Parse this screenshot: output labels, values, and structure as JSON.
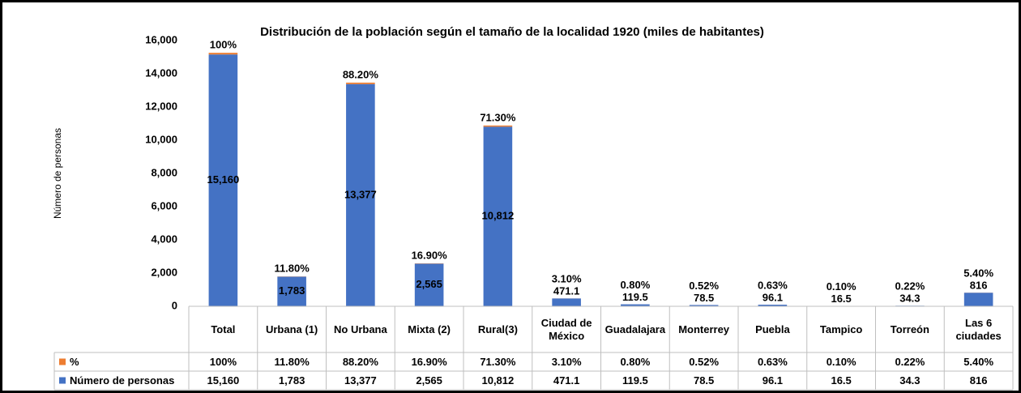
{
  "chart_data": {
    "type": "bar",
    "stacked": true,
    "title": "Distribución de la población según el tamaño de la localidad 1920 (miles de habitantes)",
    "ylabel": "Número de personas",
    "categories": [
      "Total",
      "Urbana (1)",
      "No Urbana",
      "Mixta (2)",
      "Rural(3)",
      "Ciudad de México",
      "Guadalajara",
      "Monterrey",
      "Puebla",
      "Tampico",
      "Torreón",
      "Las 6 ciudades"
    ],
    "series": [
      {
        "name": "%",
        "color": "#ed7d31",
        "values": [
          100,
          11.8,
          88.2,
          16.9,
          71.3,
          3.1,
          0.8,
          0.52,
          0.63,
          0.1,
          0.22,
          5.4
        ],
        "value_labels": [
          "100%",
          "11.80%",
          "88.20%",
          "16.90%",
          "71.30%",
          "3.10%",
          "0.80%",
          "0.52%",
          "0.63%",
          "0.10%",
          "0.22%",
          "5.40%"
        ]
      },
      {
        "name": "Número de personas",
        "color": "#4472c4",
        "values": [
          15160,
          1783,
          13377,
          2565,
          10812,
          471.1,
          119.5,
          78.5,
          96.1,
          16.5,
          34.3,
          816
        ],
        "value_labels": [
          "15,160",
          "1,783",
          "13,377",
          "2,565",
          "10,812",
          "471.1",
          "119.5",
          "78.5",
          "96.1",
          "16.5",
          "34.3",
          "816"
        ]
      }
    ],
    "ylim": [
      0,
      16000
    ],
    "yticks": [
      0,
      {
        "value": 2000,
        "label": "2,000"
      },
      {
        "value": 4000,
        "label": "4,000"
      },
      {
        "value": 6000,
        "label": "6,000"
      },
      {
        "value": 8000,
        "label": "8,000"
      },
      {
        "value": 10000,
        "label": "10,000"
      },
      {
        "value": 12000,
        "label": "12,000"
      },
      {
        "value": 14000,
        "label": "14,000"
      },
      {
        "value": 16000,
        "label": "16,000"
      }
    ],
    "grid": false,
    "data_table": true
  }
}
